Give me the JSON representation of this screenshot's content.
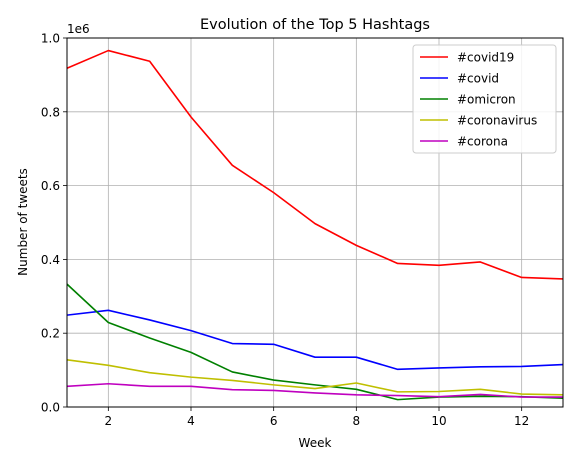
{
  "chart_data": {
    "type": "line",
    "title": "Evolution of the Top 5 Hashtags",
    "xlabel": "Week",
    "ylabel": "Number of tweets",
    "y_offset_label": "1e6",
    "xlim": [
      1,
      13
    ],
    "ylim": [
      0,
      1.0
    ],
    "x_ticks": [
      2,
      4,
      6,
      8,
      10,
      12
    ],
    "y_ticks": [
      0.0,
      0.2,
      0.4,
      0.6,
      0.8,
      1.0
    ],
    "x_tick_labels": [
      "2",
      "4",
      "6",
      "8",
      "10",
      "12"
    ],
    "y_tick_labels": [
      "0.0",
      "0.2",
      "0.4",
      "0.6",
      "0.8",
      "1.0"
    ],
    "grid": true,
    "legend_position": "top-right",
    "x": [
      1,
      2,
      3,
      4,
      5,
      6,
      7,
      8,
      9,
      10,
      11,
      12,
      13
    ],
    "series": [
      {
        "name": "#covid19",
        "color": "#ff0000",
        "values": [
          0.918,
          0.966,
          0.937,
          0.786,
          0.655,
          0.581,
          0.497,
          0.438,
          0.389,
          0.384,
          0.393,
          0.351,
          0.347
        ]
      },
      {
        "name": "#covid",
        "color": "#0000ff",
        "values": [
          0.249,
          0.262,
          0.236,
          0.207,
          0.172,
          0.17,
          0.135,
          0.135,
          0.102,
          0.106,
          0.109,
          0.11,
          0.115
        ]
      },
      {
        "name": "#omicron",
        "color": "#008000",
        "values": [
          0.333,
          0.229,
          0.187,
          0.148,
          0.095,
          0.073,
          0.06,
          0.048,
          0.02,
          0.027,
          0.029,
          0.028,
          0.024
        ]
      },
      {
        "name": "#coronavirus",
        "color": "#bfbf00",
        "values": [
          0.128,
          0.113,
          0.093,
          0.081,
          0.072,
          0.06,
          0.05,
          0.065,
          0.041,
          0.042,
          0.048,
          0.035,
          0.033
        ]
      },
      {
        "name": "#corona",
        "color": "#bf00bf",
        "values": [
          0.056,
          0.063,
          0.056,
          0.056,
          0.047,
          0.045,
          0.038,
          0.033,
          0.031,
          0.028,
          0.034,
          0.027,
          0.027
        ]
      }
    ]
  }
}
